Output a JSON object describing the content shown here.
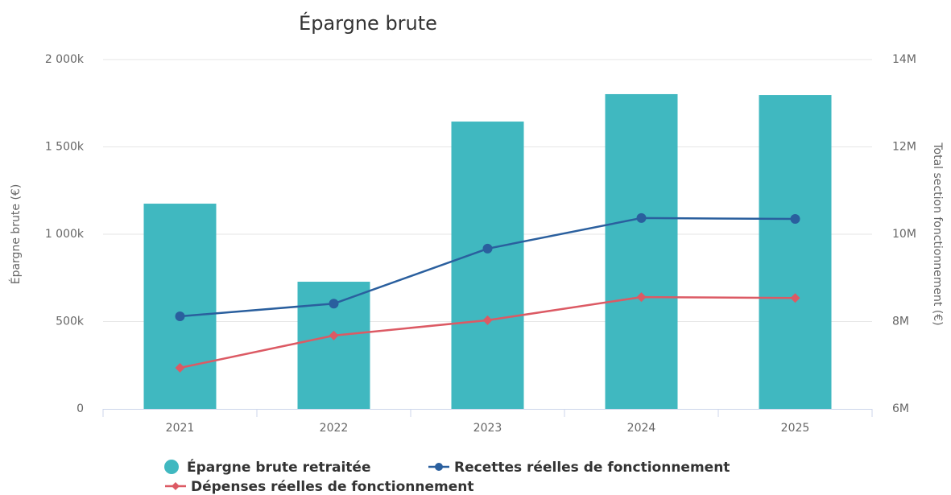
{
  "chart_data": {
    "type": "combo",
    "title": "Épargne brute",
    "y_label": "Épargne brute (€)",
    "y2_label": "Total section fonctionnement (€)",
    "categories": [
      "2021",
      "2022",
      "2023",
      "2024",
      "2025"
    ],
    "series": [
      {
        "name": "Épargne brute retraitée",
        "type": "bar",
        "color": "#40b8c0",
        "values": [
          1175000,
          728000,
          1645000,
          1802000,
          1797000
        ]
      },
      {
        "name": "Recettes réelles de fonctionnement",
        "type": "line",
        "axis": "y2",
        "color": "#2a5f9e",
        "values": [
          8120000,
          8410000,
          9670000,
          10370000,
          10350000
        ]
      },
      {
        "name": "Dépenses réelles de fonctionnement",
        "type": "line",
        "axis": "y2",
        "color": "#dc5a64",
        "values": [
          6940000,
          7680000,
          8030000,
          8560000,
          8540000
        ]
      }
    ],
    "ylim": [
      0,
      2000000
    ],
    "yticks": [
      0,
      {
        "value": 500000,
        "label": "500k"
      },
      {
        "value": 1000000,
        "label": "1 000k"
      },
      {
        "value": 1500000,
        "label": "1 500k"
      },
      {
        "value": 2000000,
        "label": "2 000k"
      }
    ],
    "y2lim": [
      6000000,
      14000000
    ],
    "y2ticks": [
      {
        "value": 6000000,
        "label": "6M"
      },
      {
        "value": 8000000,
        "label": "8M"
      },
      {
        "value": 10000000,
        "label": "10M"
      },
      {
        "value": 12000000,
        "label": "12M"
      },
      {
        "value": 14000000,
        "label": "14M"
      }
    ],
    "grid": true
  }
}
